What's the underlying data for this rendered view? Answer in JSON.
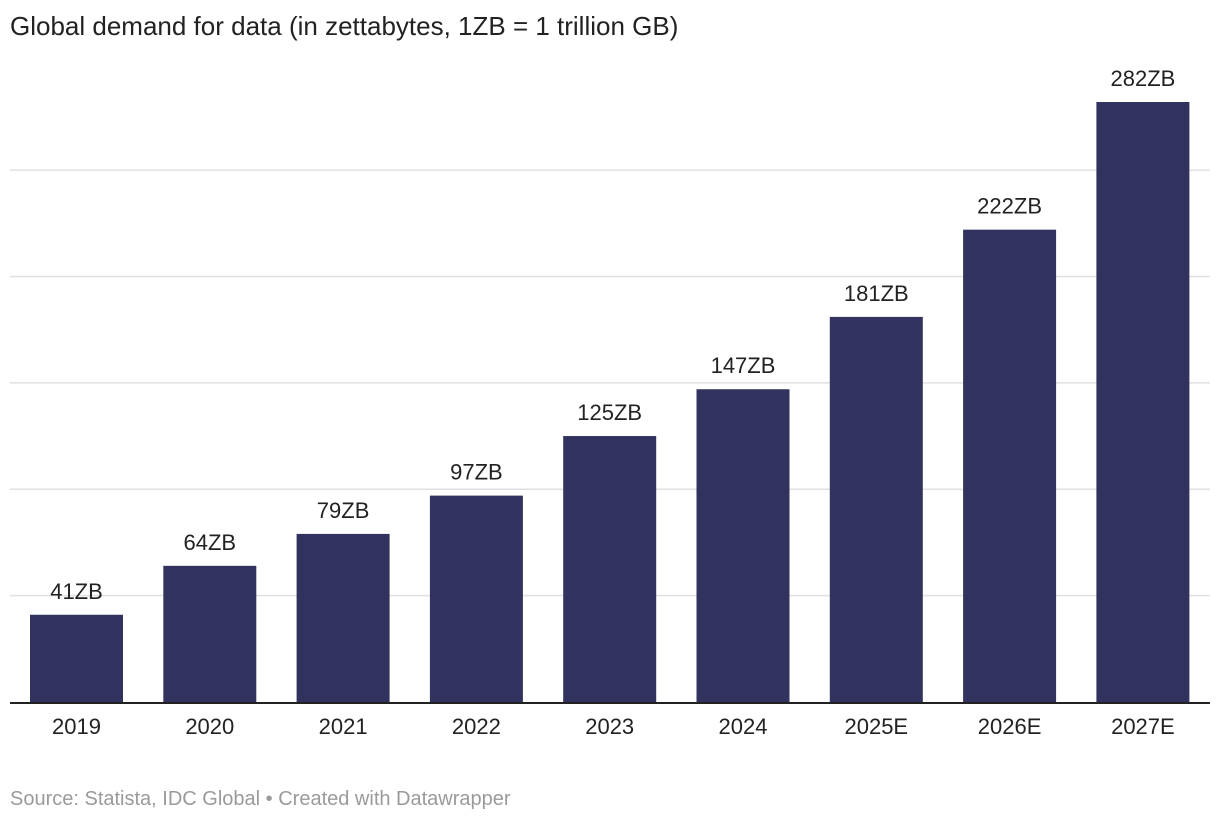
{
  "chart_data": {
    "type": "bar",
    "title": "Global demand for data (in zettabytes, 1ZB = 1 trillion GB)",
    "xlabel": "",
    "ylabel": "",
    "ylim": [
      0,
      300
    ],
    "grid": true,
    "categories": [
      "2019",
      "2020",
      "2021",
      "2022",
      "2023",
      "2024",
      "2025E",
      "2026E",
      "2027E"
    ],
    "values": [
      41,
      64,
      79,
      97,
      125,
      147,
      181,
      222,
      282
    ],
    "data_labels": [
      "41ZB",
      "64ZB",
      "79ZB",
      "97ZB",
      "125ZB",
      "147ZB",
      "181ZB",
      "222ZB",
      "282ZB"
    ],
    "bar_color": "#32325f",
    "gridline_color": "#e0e0e0"
  },
  "footer": {
    "source": "Source: Statista, IDC Global • Created with Datawrapper"
  }
}
